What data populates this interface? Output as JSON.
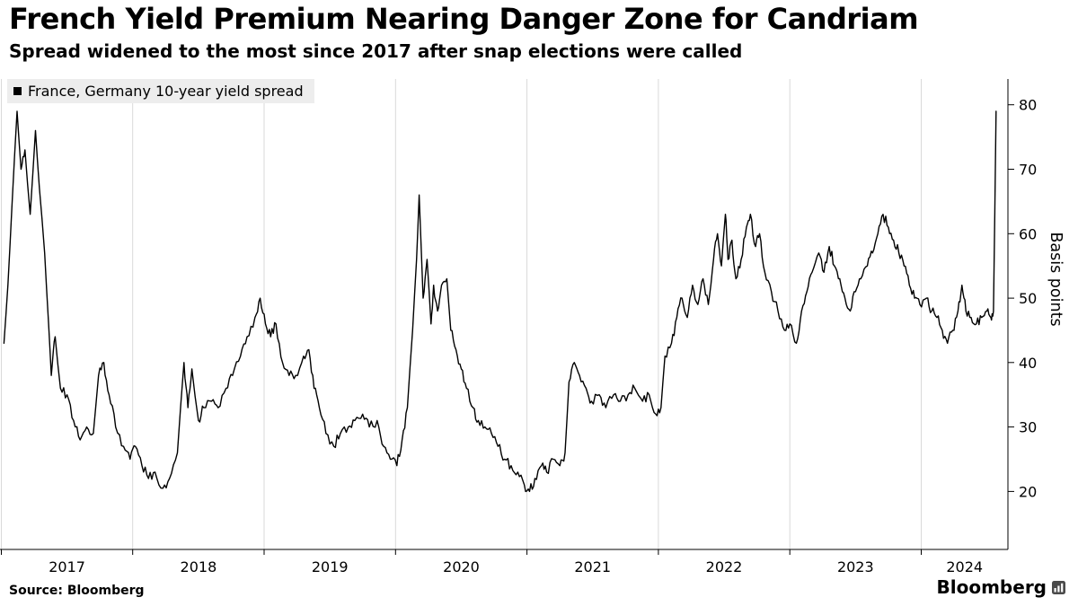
{
  "header": {
    "title": "French Yield Premium Nearing Danger Zone for Candriam",
    "subtitle": "Spread widened to the most since 2017 after snap elections were called"
  },
  "legend": {
    "label": "France, Germany 10-year yield spread"
  },
  "footer": {
    "source_label": "Source: Bloomberg",
    "brand": "Bloomberg"
  },
  "chart_data": {
    "type": "line",
    "title": "French Yield Premium Nearing Danger Zone for Candriam",
    "subtitle": "Spread widened to the most since 2017 after snap elections were called",
    "ylabel": "Basis points",
    "xlabel": "",
    "legend_position": "top-left",
    "grid": "vertical-only",
    "x_range": [
      2016.99,
      2024.66
    ],
    "y_range": [
      11,
      84
    ],
    "x_tick_years": [
      2017,
      2018,
      2019,
      2020,
      2021,
      2022,
      2023,
      2024
    ],
    "x_tick_labels": [
      "2017",
      "2018",
      "2019",
      "2020",
      "2021",
      "2022",
      "2023",
      "2024"
    ],
    "y_ticks": [
      20,
      30,
      40,
      50,
      60,
      70,
      80
    ],
    "axis_color": "#000000",
    "grid_color": "#d9d9d9",
    "line_color": "#000000",
    "series": [
      {
        "name": "France, Germany 10-year yield spread",
        "color": "#000000",
        "unit": "basis points",
        "points": [
          [
            2017.02,
            43
          ],
          [
            2017.05,
            52
          ],
          [
            2017.08,
            64
          ],
          [
            2017.12,
            79
          ],
          [
            2017.15,
            70
          ],
          [
            2017.18,
            73
          ],
          [
            2017.22,
            63
          ],
          [
            2017.26,
            76
          ],
          [
            2017.29,
            67
          ],
          [
            2017.33,
            57
          ],
          [
            2017.36,
            46
          ],
          [
            2017.38,
            38
          ],
          [
            2017.41,
            44
          ],
          [
            2017.45,
            36
          ],
          [
            2017.5,
            35
          ],
          [
            2017.55,
            31
          ],
          [
            2017.6,
            28
          ],
          [
            2017.65,
            30
          ],
          [
            2017.7,
            29
          ],
          [
            2017.74,
            38
          ],
          [
            2017.78,
            40
          ],
          [
            2017.82,
            35
          ],
          [
            2017.87,
            30
          ],
          [
            2017.93,
            27
          ],
          [
            2017.98,
            25
          ],
          [
            2018.02,
            27
          ],
          [
            2018.07,
            24
          ],
          [
            2018.12,
            22
          ],
          [
            2018.17,
            23
          ],
          [
            2018.23,
            20.5
          ],
          [
            2018.28,
            22
          ],
          [
            2018.34,
            26
          ],
          [
            2018.39,
            40
          ],
          [
            2018.42,
            33
          ],
          [
            2018.45,
            39
          ],
          [
            2018.5,
            31
          ],
          [
            2018.54,
            33
          ],
          [
            2018.6,
            34
          ],
          [
            2018.65,
            33
          ],
          [
            2018.71,
            36
          ],
          [
            2018.76,
            38
          ],
          [
            2018.82,
            41
          ],
          [
            2018.87,
            44
          ],
          [
            2018.93,
            47
          ],
          [
            2018.97,
            50
          ],
          [
            2019.01,
            46
          ],
          [
            2019.05,
            44
          ],
          [
            2019.09,
            46
          ],
          [
            2019.14,
            40
          ],
          [
            2019.19,
            38
          ],
          [
            2019.24,
            38
          ],
          [
            2019.3,
            41
          ],
          [
            2019.34,
            42
          ],
          [
            2019.38,
            36
          ],
          [
            2019.42,
            33
          ],
          [
            2019.47,
            29
          ],
          [
            2019.53,
            27
          ],
          [
            2019.58,
            29
          ],
          [
            2019.64,
            30
          ],
          [
            2019.69,
            31
          ],
          [
            2019.75,
            32
          ],
          [
            2019.8,
            30
          ],
          [
            2019.86,
            31
          ],
          [
            2019.91,
            27
          ],
          [
            2019.96,
            25
          ],
          [
            2020.01,
            24
          ],
          [
            2020.05,
            28
          ],
          [
            2020.09,
            33
          ],
          [
            2020.13,
            45
          ],
          [
            2020.16,
            56
          ],
          [
            2020.18,
            66
          ],
          [
            2020.21,
            50
          ],
          [
            2020.24,
            56
          ],
          [
            2020.27,
            46
          ],
          [
            2020.29,
            52
          ],
          [
            2020.32,
            48
          ],
          [
            2020.35,
            52
          ],
          [
            2020.39,
            53
          ],
          [
            2020.42,
            45
          ],
          [
            2020.46,
            42
          ],
          [
            2020.5,
            39
          ],
          [
            2020.54,
            36
          ],
          [
            2020.59,
            33
          ],
          [
            2020.63,
            31
          ],
          [
            2020.68,
            30
          ],
          [
            2020.73,
            29
          ],
          [
            2020.78,
            27
          ],
          [
            2020.83,
            25
          ],
          [
            2020.88,
            24
          ],
          [
            2020.93,
            23
          ],
          [
            2020.98,
            21
          ],
          [
            2021.02,
            20
          ],
          [
            2021.06,
            22
          ],
          [
            2021.11,
            24
          ],
          [
            2021.15,
            23
          ],
          [
            2021.2,
            25
          ],
          [
            2021.25,
            24
          ],
          [
            2021.29,
            26
          ],
          [
            2021.32,
            37
          ],
          [
            2021.36,
            40
          ],
          [
            2021.4,
            38
          ],
          [
            2021.45,
            36
          ],
          [
            2021.49,
            34
          ],
          [
            2021.55,
            35
          ],
          [
            2021.6,
            33
          ],
          [
            2021.66,
            35
          ],
          [
            2021.71,
            34
          ],
          [
            2021.77,
            35
          ],
          [
            2021.82,
            36
          ],
          [
            2021.88,
            34
          ],
          [
            2021.93,
            35
          ],
          [
            2021.98,
            32
          ],
          [
            2022.02,
            33
          ],
          [
            2022.05,
            41
          ],
          [
            2022.1,
            43
          ],
          [
            2022.14,
            47
          ],
          [
            2022.18,
            50
          ],
          [
            2022.22,
            47
          ],
          [
            2022.26,
            52
          ],
          [
            2022.3,
            49
          ],
          [
            2022.34,
            53
          ],
          [
            2022.38,
            49
          ],
          [
            2022.42,
            56
          ],
          [
            2022.45,
            60
          ],
          [
            2022.48,
            55
          ],
          [
            2022.51,
            63
          ],
          [
            2022.53,
            56
          ],
          [
            2022.56,
            59
          ],
          [
            2022.59,
            53
          ],
          [
            2022.63,
            56
          ],
          [
            2022.67,
            61
          ],
          [
            2022.7,
            63
          ],
          [
            2022.74,
            58
          ],
          [
            2022.77,
            60
          ],
          [
            2022.81,
            54
          ],
          [
            2022.86,
            51
          ],
          [
            2022.91,
            48
          ],
          [
            2022.96,
            45
          ],
          [
            2023.0,
            46
          ],
          [
            2023.05,
            43
          ],
          [
            2023.09,
            48
          ],
          [
            2023.13,
            51
          ],
          [
            2023.17,
            54
          ],
          [
            2023.22,
            57
          ],
          [
            2023.26,
            54
          ],
          [
            2023.3,
            58
          ],
          [
            2023.34,
            55
          ],
          [
            2023.38,
            53
          ],
          [
            2023.42,
            50
          ],
          [
            2023.46,
            48
          ],
          [
            2023.5,
            51
          ],
          [
            2023.54,
            53
          ],
          [
            2023.59,
            55
          ],
          [
            2023.63,
            57
          ],
          [
            2023.67,
            60
          ],
          [
            2023.71,
            63
          ],
          [
            2023.75,
            61
          ],
          [
            2023.79,
            59
          ],
          [
            2023.83,
            57
          ],
          [
            2023.87,
            55
          ],
          [
            2023.91,
            52
          ],
          [
            2023.95,
            50
          ],
          [
            2023.99,
            49
          ],
          [
            2024.04,
            50
          ],
          [
            2024.08,
            48
          ],
          [
            2024.12,
            47
          ],
          [
            2024.16,
            45
          ],
          [
            2024.2,
            43
          ],
          [
            2024.24,
            45
          ],
          [
            2024.28,
            48
          ],
          [
            2024.31,
            52
          ],
          [
            2024.34,
            48
          ],
          [
            2024.38,
            47
          ],
          [
            2024.42,
            46
          ],
          [
            2024.46,
            47
          ],
          [
            2024.5,
            48
          ],
          [
            2024.53,
            47
          ],
          [
            2024.55,
            48
          ],
          [
            2024.57,
            79
          ]
        ]
      }
    ]
  }
}
